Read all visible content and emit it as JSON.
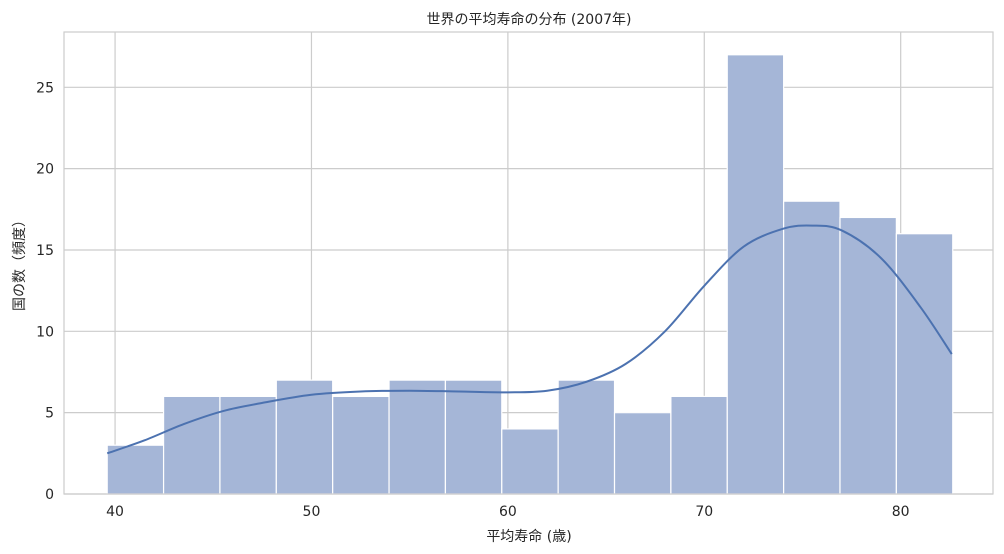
{
  "chart_data": {
    "type": "histogram",
    "title": "世界の平均寿命の分布 (2007年)",
    "xlabel": "平均寿命 (歳)",
    "ylabel": "国の数（頻度）",
    "xlim": [
      37.4,
      84.7
    ],
    "ylim": [
      0,
      28.4
    ],
    "x_ticks": [
      40,
      50,
      60,
      70,
      80
    ],
    "y_ticks": [
      0,
      5,
      10,
      15,
      20,
      25
    ],
    "grid": true,
    "bins": [
      {
        "x0": 39.6,
        "x1": 42.47,
        "count": 3
      },
      {
        "x0": 42.47,
        "x1": 45.34,
        "count": 6
      },
      {
        "x0": 45.34,
        "x1": 48.21,
        "count": 6
      },
      {
        "x0": 48.21,
        "x1": 51.08,
        "count": 7
      },
      {
        "x0": 51.08,
        "x1": 53.95,
        "count": 6
      },
      {
        "x0": 53.95,
        "x1": 56.82,
        "count": 7
      },
      {
        "x0": 56.82,
        "x1": 59.69,
        "count": 7
      },
      {
        "x0": 59.69,
        "x1": 62.56,
        "count": 4
      },
      {
        "x0": 62.56,
        "x1": 65.43,
        "count": 7
      },
      {
        "x0": 65.43,
        "x1": 68.3,
        "count": 5
      },
      {
        "x0": 68.3,
        "x1": 71.17,
        "count": 6
      },
      {
        "x0": 71.17,
        "x1": 74.04,
        "count": 27
      },
      {
        "x0": 74.04,
        "x1": 76.91,
        "count": 18
      },
      {
        "x0": 76.91,
        "x1": 79.78,
        "count": 17
      },
      {
        "x0": 79.78,
        "x1": 82.65,
        "count": 16
      }
    ],
    "kde": {
      "x": [
        39.6,
        41.5,
        43.5,
        45.5,
        47.5,
        50,
        52.5,
        55,
        57.5,
        60,
        62,
        64,
        66,
        68,
        70,
        72,
        74,
        75.5,
        77,
        79,
        81,
        82.6
      ],
      "y": [
        2.5,
        3.3,
        4.3,
        5.1,
        5.6,
        6.1,
        6.3,
        6.35,
        6.3,
        6.25,
        6.35,
        6.9,
        8.0,
        10.0,
        12.8,
        15.2,
        16.3,
        16.5,
        16.2,
        14.5,
        11.5,
        8.6
      ]
    },
    "colors": {
      "bar_fill": "#a5b6d7",
      "bar_edge": "#ffffff",
      "kde_line": "#4c72b0",
      "grid": "#cccccc",
      "spine": "#cccccc"
    }
  }
}
